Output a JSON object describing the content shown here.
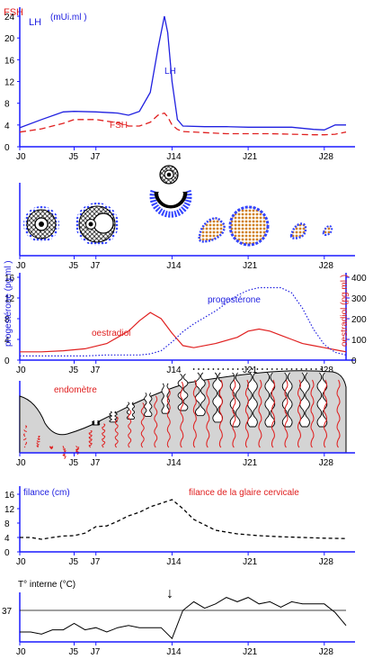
{
  "days": {
    "J0": "J0",
    "J5": "J5",
    "J7": "J7",
    "J14": "J14",
    "J21": "J21",
    "J28": "J28"
  },
  "colors": {
    "axis": "#1a1aff",
    "fsh": "#e02020",
    "lh": "#2020e0",
    "prog": "#2020e0",
    "oest": "#e02020",
    "endo_fill": "#d4d4d4",
    "vessel": "#e02020",
    "follicle_ring": "#3344ff",
    "follicle_dot": "#d08020"
  },
  "panel1": {
    "legend_fsh": "FSH",
    "legend_lh": "LH",
    "legend_unit": "(mUi.ml  )",
    "ticks": [
      "24",
      "20",
      "16",
      "12",
      "8",
      "4",
      "0"
    ],
    "curve_label_lh": "LH",
    "curve_label_fsh": "FSH",
    "chart_data": {
      "type": "line",
      "x": [
        0,
        2,
        4,
        5,
        7,
        9,
        10,
        11,
        12,
        12.7,
        13.3,
        13.6,
        14,
        14.5,
        15,
        17,
        19,
        21,
        23,
        25,
        27,
        28,
        29,
        30
      ],
      "series": [
        {
          "name": "LH",
          "values": [
            3.5,
            5,
            6.4,
            6.5,
            6.4,
            6.2,
            5.8,
            6.5,
            10,
            18,
            24,
            21,
            12,
            5,
            3.8,
            3.7,
            3.7,
            3.6,
            3.6,
            3.6,
            3.2,
            3.1,
            4,
            4
          ]
        },
        {
          "name": "FSH",
          "values": [
            2.7,
            3.3,
            4.3,
            5,
            5,
            4.4,
            3.8,
            3.8,
            4.5,
            5.8,
            6.2,
            5.5,
            4,
            3.2,
            2.8,
            2.6,
            2.4,
            2.4,
            2.4,
            2.3,
            2.2,
            2.2,
            2.3,
            2.7
          ]
        }
      ],
      "ylim": [
        0,
        25
      ]
    }
  },
  "panel3": {
    "ylabel_left": "progestérone (pg.ml )",
    "ylabel_right": "oestradiol (pg.ml )",
    "ticks_left": [
      "16",
      "12",
      "8",
      "4",
      "0"
    ],
    "ticks_right": [
      "400",
      "300",
      "200",
      "100",
      "0"
    ],
    "label_oest": "oestradiol",
    "label_prog": "progestérone",
    "chart_data": {
      "type": "line",
      "x": [
        0,
        2,
        4,
        6,
        8,
        10,
        11,
        12,
        13,
        14,
        15,
        16,
        18,
        20,
        21,
        22,
        23,
        24,
        25,
        26,
        27,
        28,
        29,
        30
      ],
      "series": [
        {
          "name": "oestradiol",
          "values": [
            40,
            40,
            45,
            55,
            80,
            140,
            190,
            230,
            200,
            130,
            70,
            60,
            80,
            110,
            140,
            150,
            140,
            120,
            100,
            80,
            70,
            60,
            50,
            40
          ]
        },
        {
          "name": "progestérone",
          "values": [
            0.8,
            0.8,
            0.8,
            0.8,
            1,
            1,
            1,
            1.2,
            1.8,
            3.5,
            5.5,
            7,
            9.5,
            12.5,
            13.5,
            14,
            14,
            14,
            13,
            10,
            6,
            3,
            1.5,
            1
          ]
        }
      ]
    }
  },
  "panel4": {
    "label": "endomètre"
  },
  "panel5": {
    "ylabel": "filance (cm)",
    "title": "filance de la glaire cervicale",
    "ticks": [
      "16",
      "12",
      "8",
      "4",
      "0"
    ],
    "chart_data": {
      "type": "line",
      "x": [
        0,
        1,
        2,
        3,
        4,
        5,
        6,
        7,
        8,
        9,
        10,
        11,
        12,
        13,
        14,
        15,
        16,
        17,
        18,
        20,
        22,
        24,
        26,
        28,
        30
      ],
      "series": [
        {
          "name": "filance",
          "values": [
            4,
            4,
            3.5,
            4,
            4.4,
            4.5,
            5.2,
            7,
            7.2,
            8.5,
            10,
            11,
            12.5,
            13.5,
            14.5,
            12,
            9,
            7.5,
            6,
            5,
            4.5,
            4.2,
            4,
            3.8,
            3.7
          ]
        }
      ],
      "ylim": [
        0,
        17
      ]
    }
  },
  "panel6": {
    "ylabel": "T° interne (°C)",
    "tick_37": "37",
    "arrow": "↓",
    "chart_data": {
      "type": "line",
      "x": [
        0,
        1,
        2,
        3,
        4,
        5,
        6,
        7,
        8,
        9,
        10,
        11,
        12,
        13,
        14,
        15,
        16,
        17,
        18,
        19,
        20,
        21,
        22,
        23,
        24,
        25,
        26,
        27,
        28,
        29,
        30
      ],
      "series": [
        {
          "name": "temperature",
          "values": [
            -2,
            -2,
            -2.2,
            -1.8,
            -1.8,
            -1.2,
            -1.8,
            -1.6,
            -2,
            -1.6,
            -1.4,
            -1.6,
            -1.6,
            -1.6,
            -2.6,
            0,
            0.8,
            0.2,
            0.6,
            1.2,
            0.8,
            1.2,
            0.6,
            0.8,
            0.3,
            0.8,
            0.6,
            0.6,
            0.6,
            -0.2,
            -1.4
          ]
        }
      ]
    }
  }
}
